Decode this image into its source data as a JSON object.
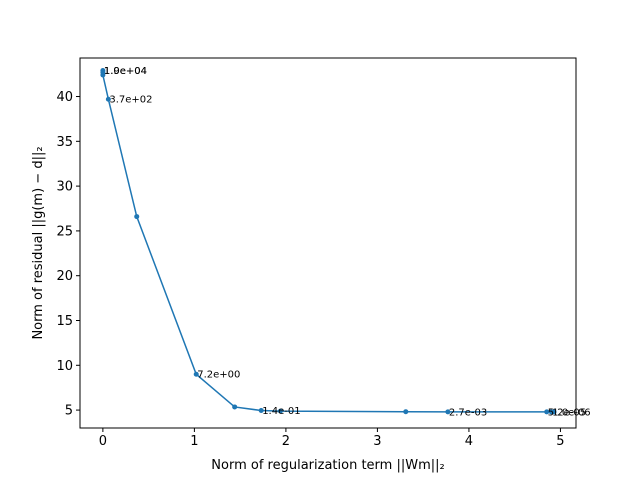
{
  "chart_data": {
    "type": "line",
    "title": "",
    "xlabel": "Norm of regularization term ||Wm||₂",
    "ylabel": "Norm of residual ||g(m) − d||₂",
    "xlim": [
      -0.25,
      5.17
    ],
    "ylim": [
      3.0,
      44.3
    ],
    "xticks": [
      0,
      1,
      2,
      3,
      4,
      5
    ],
    "yticks": [
      5,
      10,
      15,
      20,
      25,
      30,
      35,
      40
    ],
    "grid": false,
    "legend": "none",
    "series_color": "#1f77b4",
    "points": [
      {
        "x": 0.0,
        "y": 42.9
      },
      {
        "x": 0.0,
        "y": 42.7
      },
      {
        "x": 0.0,
        "y": 42.4
      },
      {
        "x": 0.06,
        "y": 39.7
      },
      {
        "x": 0.37,
        "y": 26.6
      },
      {
        "x": 1.02,
        "y": 9.0
      },
      {
        "x": 1.44,
        "y": 5.35
      },
      {
        "x": 1.73,
        "y": 4.95
      },
      {
        "x": 1.94,
        "y": 4.88
      },
      {
        "x": 3.31,
        "y": 4.82
      },
      {
        "x": 3.77,
        "y": 4.8
      },
      {
        "x": 4.85,
        "y": 4.8
      },
      {
        "x": 4.9,
        "y": 4.8
      },
      {
        "x": 4.93,
        "y": 4.8
      }
    ],
    "annotations": [
      {
        "x": 0.0,
        "y": 42.9,
        "text": "1.0e+04"
      },
      {
        "x": 0.0,
        "y": 42.9,
        "text": "1.9e+04"
      },
      {
        "x": 0.06,
        "y": 39.7,
        "text": "3.7e+02"
      },
      {
        "x": 1.02,
        "y": 9.0,
        "text": "7.2e+00"
      },
      {
        "x": 1.73,
        "y": 4.95,
        "text": "1.4e-01"
      },
      {
        "x": 3.77,
        "y": 4.8,
        "text": "2.7e-03"
      },
      {
        "x": 4.85,
        "y": 4.8,
        "text": "5.2e-05"
      },
      {
        "x": 4.9,
        "y": 4.8,
        "text": "1.0e-06"
      }
    ]
  }
}
